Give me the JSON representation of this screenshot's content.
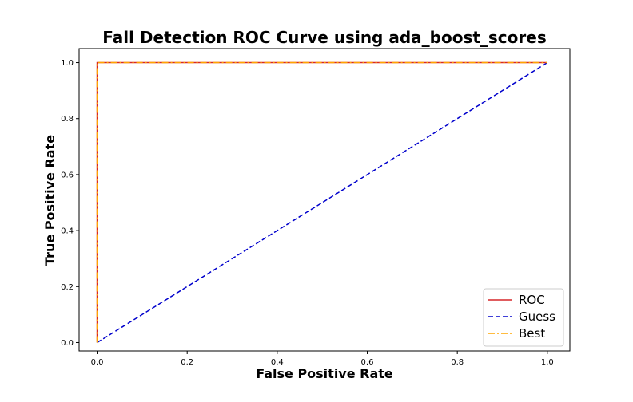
{
  "chart_data": {
    "type": "line",
    "title": "Fall Detection ROC Curve using ada_boost_scores",
    "xlabel": "False Positive Rate",
    "ylabel": "True Positive Rate",
    "xlim": [
      -0.04,
      1.05
    ],
    "ylim": [
      -0.03,
      1.05
    ],
    "xticks": [
      0.0,
      0.2,
      0.4,
      0.6,
      0.8,
      1.0
    ],
    "yticks": [
      0.0,
      0.2,
      0.4,
      0.6,
      0.8,
      1.0
    ],
    "xtick_labels": [
      "0.0",
      "0.2",
      "0.4",
      "0.6",
      "0.8",
      "1.0"
    ],
    "ytick_labels": [
      "0.0",
      "0.2",
      "0.4",
      "0.6",
      "0.8",
      "1.0"
    ],
    "grid": false,
    "legend_position": "bottom-right",
    "series": [
      {
        "name": "ROC",
        "color": "#d62728",
        "dash": "solid",
        "x": [
          0.0,
          0.0,
          1.0
        ],
        "y": [
          0.0,
          1.0,
          1.0
        ]
      },
      {
        "name": "Guess",
        "color": "#0000cc",
        "dash": "dashed",
        "x": [
          0.0,
          1.0
        ],
        "y": [
          0.0,
          1.0
        ]
      },
      {
        "name": "Best",
        "color": "#ffa500",
        "dash": "dashdot",
        "x": [
          0.0,
          0.0,
          1.0
        ],
        "y": [
          0.0,
          1.0,
          1.0
        ]
      }
    ]
  }
}
